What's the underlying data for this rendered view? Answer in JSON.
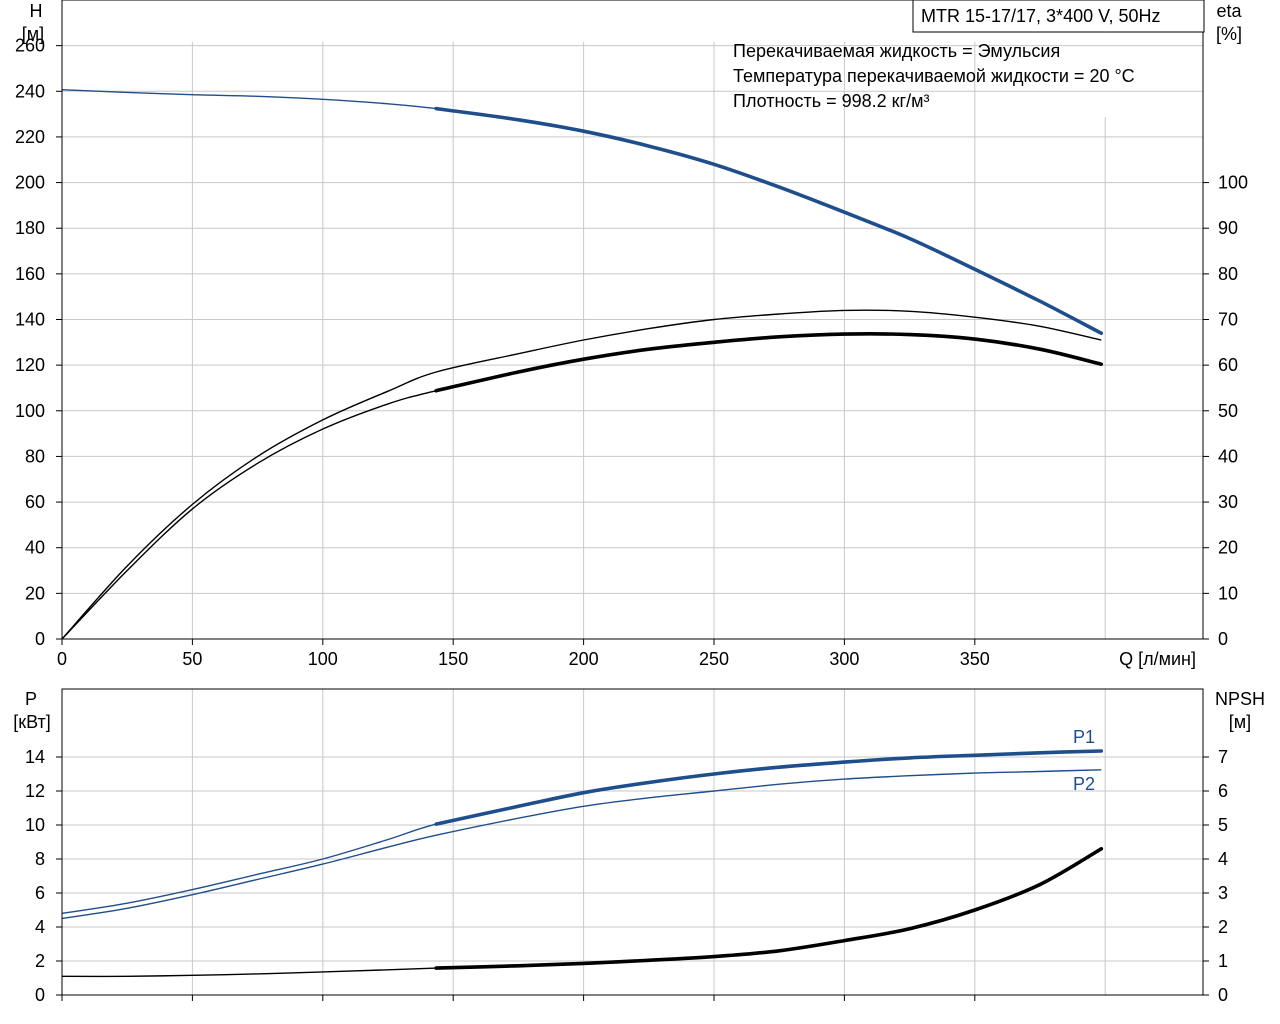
{
  "title": "MTR 15-17/17, 3*400 V, 50Hz",
  "info_lines": [
    "Перекачиваемая жидкость = Эмульсия",
    "Температура перекачиваемой жидкости = 20 °C",
    "Плотность = 998.2 кг/м³"
  ],
  "colors": {
    "blue": "#1f4e8c",
    "black": "#000000",
    "grid": "#c8c8c8"
  },
  "chart_data": [
    {
      "type": "line",
      "name_id": "head-efficiency",
      "x_axis": {
        "label": "Q [л/мин]",
        "range": [
          0,
          437.5
        ],
        "ticks": [
          0,
          50,
          100,
          150,
          200,
          250,
          300,
          350
        ]
      },
      "y_left": {
        "label_top": "H",
        "label_unit": "[м]",
        "range": [
          0,
          280
        ],
        "ticks": [
          0,
          20,
          40,
          60,
          80,
          100,
          120,
          140,
          160,
          180,
          200,
          220,
          240,
          260
        ]
      },
      "y_right": {
        "label_top": "eta",
        "label_unit": "[%]",
        "range": [
          0,
          140
        ],
        "ticks": [
          0,
          10,
          20,
          30,
          40,
          50,
          60,
          70,
          80,
          90,
          100
        ]
      },
      "grid": true,
      "series": [
        {
          "id": "head",
          "axis": "left",
          "color": "blue",
          "x": [
            0,
            25,
            50,
            75,
            100,
            125,
            143.5,
            175,
            200,
            225,
            250,
            275,
            300,
            325,
            350,
            375,
            398.5
          ],
          "y": [
            240.7,
            239.5,
            238.5,
            237.8,
            236.5,
            234.5,
            232.4,
            227.5,
            222.5,
            216.0,
            208.0,
            198.0,
            187.0,
            175.5,
            162.0,
            148.0,
            134.0
          ],
          "bold_from": 143.5
        },
        {
          "id": "eta-upper",
          "axis": "right",
          "color": "black",
          "x": [
            0,
            25,
            50,
            75,
            100,
            125,
            143.5,
            175,
            200,
            225,
            250,
            275,
            300,
            325,
            350,
            375,
            398.5
          ],
          "y": [
            0.0,
            16.0,
            29.5,
            40.0,
            48.0,
            54.3,
            58.5,
            62.5,
            65.5,
            68.0,
            70.0,
            71.2,
            72.0,
            71.8,
            70.5,
            68.5,
            65.5
          ]
        },
        {
          "id": "eta-lower",
          "axis": "right",
          "color": "black",
          "x": [
            0,
            25,
            50,
            75,
            100,
            125,
            143.5,
            175,
            200,
            225,
            250,
            275,
            300,
            325,
            350,
            375,
            398.5
          ],
          "y": [
            0.0,
            15.0,
            28.5,
            38.5,
            46.0,
            51.5,
            54.4,
            58.5,
            61.3,
            63.5,
            65.0,
            66.2,
            66.8,
            66.7,
            65.7,
            63.5,
            60.2
          ],
          "bold_from": 143.5
        }
      ]
    },
    {
      "type": "line",
      "name_id": "power-npsh",
      "x_axis": {
        "label": "",
        "range": [
          0,
          437.5
        ],
        "ticks": []
      },
      "y_left": {
        "label_top": "P",
        "label_unit": "[кВт]",
        "range": [
          0,
          18
        ],
        "ticks": [
          0,
          2,
          4,
          6,
          8,
          10,
          12,
          14
        ]
      },
      "y_right": {
        "label_top": "NPSH",
        "label_unit": "[м]",
        "range": [
          0,
          9
        ],
        "ticks": [
          0,
          1,
          2,
          3,
          4,
          5,
          6,
          7
        ]
      },
      "grid": true,
      "series": [
        {
          "id": "p1",
          "name": "P1",
          "axis": "left",
          "color": "blue",
          "x": [
            0,
            25,
            50,
            75,
            100,
            125,
            143.5,
            175,
            200,
            225,
            250,
            275,
            300,
            325,
            350,
            375,
            398.5
          ],
          "y": [
            4.8,
            5.4,
            6.2,
            7.1,
            8.0,
            9.15,
            10.05,
            11.1,
            11.9,
            12.5,
            13.0,
            13.4,
            13.7,
            13.95,
            14.1,
            14.25,
            14.35
          ],
          "bold_from": 143.5
        },
        {
          "id": "p2",
          "name": "P2",
          "axis": "left",
          "color": "blue",
          "x": [
            0,
            25,
            50,
            75,
            100,
            125,
            143.5,
            175,
            200,
            225,
            250,
            275,
            300,
            325,
            350,
            375,
            398.5
          ],
          "y": [
            4.5,
            5.1,
            5.9,
            6.8,
            7.7,
            8.7,
            9.4,
            10.4,
            11.1,
            11.6,
            12.0,
            12.4,
            12.7,
            12.9,
            13.05,
            13.15,
            13.25
          ]
        },
        {
          "id": "npsh",
          "axis": "right",
          "color": "black",
          "x": [
            0,
            25,
            50,
            75,
            100,
            125,
            143.5,
            175,
            200,
            225,
            250,
            275,
            300,
            325,
            350,
            375,
            398.5
          ],
          "y": [
            0.55,
            0.55,
            0.58,
            0.62,
            0.68,
            0.74,
            0.79,
            0.86,
            0.93,
            1.02,
            1.13,
            1.3,
            1.6,
            1.95,
            2.5,
            3.25,
            4.3
          ],
          "bold_from": 143.5
        }
      ]
    }
  ]
}
